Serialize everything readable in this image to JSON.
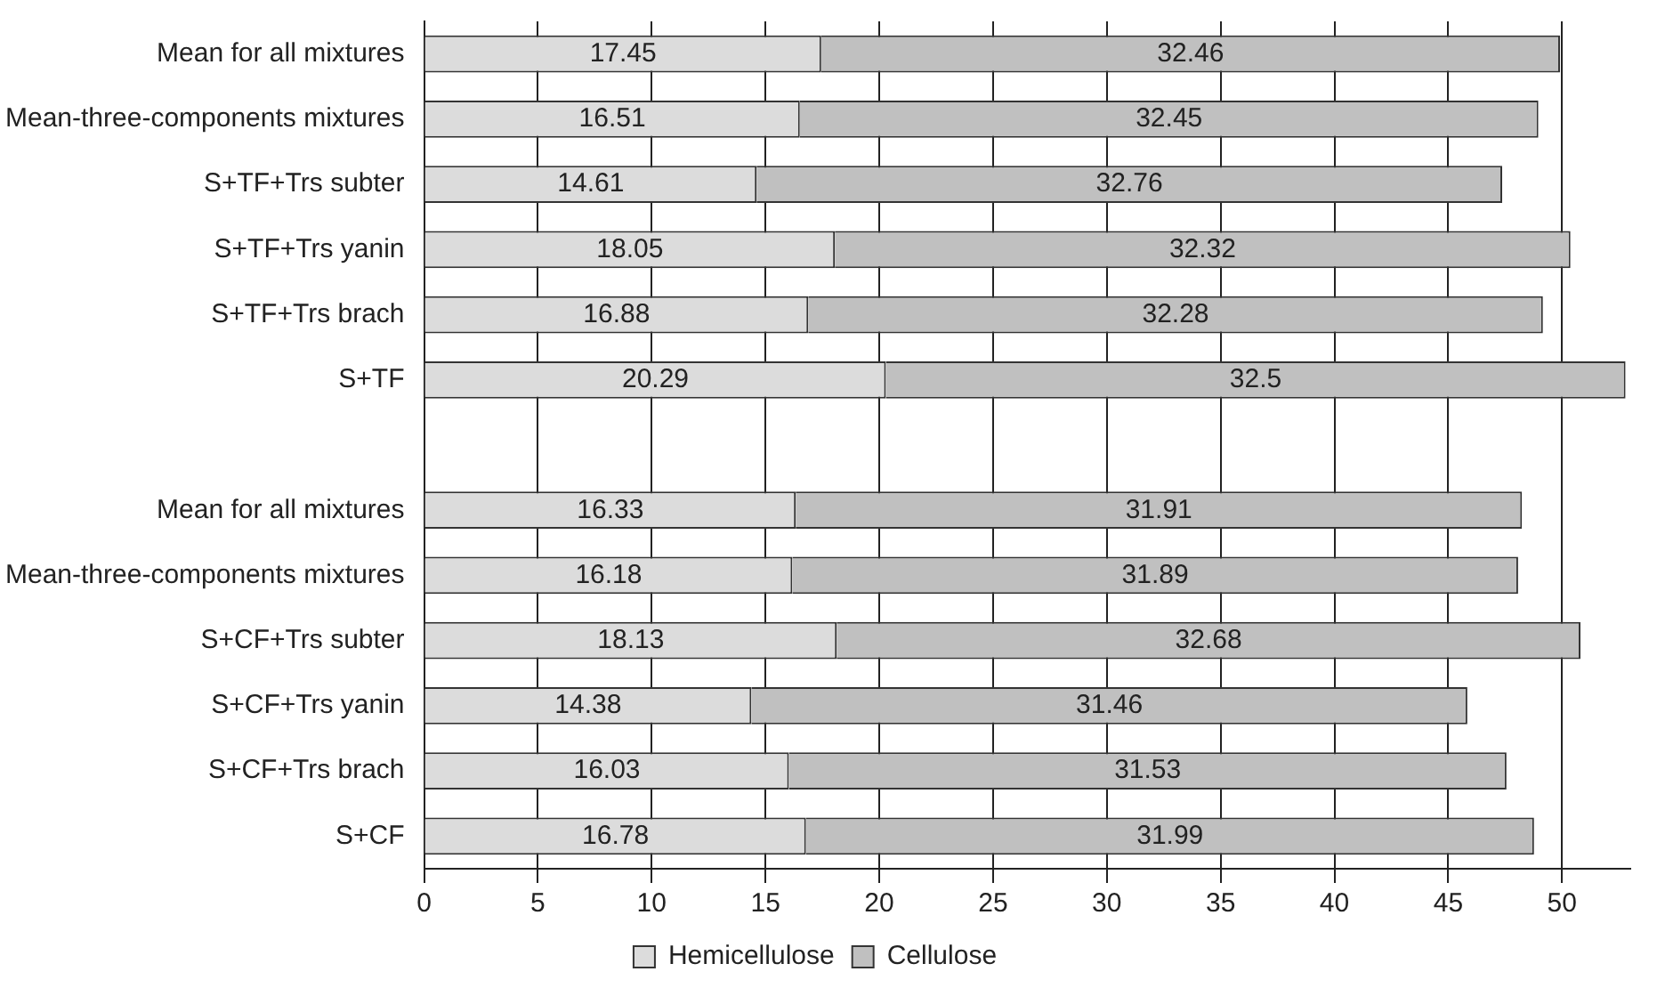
{
  "chart_data": {
    "type": "bar",
    "orientation": "horizontal",
    "stacked": true,
    "categories": [
      "Mean for all mixtures",
      "Mean-three-components mixtures",
      "S+TF+Trs subter",
      "S+TF+Trs yanin",
      "S+TF+Trs brach",
      "S+TF",
      null,
      "Mean for all mixtures",
      "Mean-three-components mixtures",
      "S+CF+Trs subter",
      "S+CF+Trs yanin",
      "S+CF+Trs brach",
      "S+CF"
    ],
    "series": [
      {
        "name": "Hemicellulose",
        "color": "#dcdcdc",
        "values": [
          17.45,
          16.51,
          14.61,
          18.05,
          16.88,
          20.29,
          null,
          16.33,
          16.18,
          18.13,
          14.38,
          16.03,
          16.78
        ]
      },
      {
        "name": "Cellulose",
        "color": "#c0c0c0",
        "values": [
          32.46,
          32.45,
          32.76,
          32.32,
          32.28,
          32.5,
          null,
          31.91,
          31.89,
          32.68,
          31.46,
          31.53,
          31.99
        ]
      }
    ],
    "xlim": [
      0,
      53
    ],
    "xticks": [
      0,
      5,
      10,
      15,
      20,
      25,
      30,
      35,
      40,
      45,
      50
    ],
    "grid": "x",
    "legend": "bottom",
    "data_labels": true
  }
}
